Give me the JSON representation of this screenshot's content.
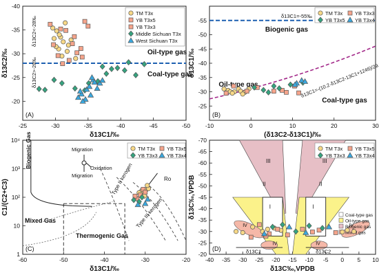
{
  "chart_data": [
    {
      "panel": "(A)",
      "type": "scatter",
      "xlabel": "δ13C1/‰",
      "ylabel": "δ13C2/‰",
      "xlim": [
        -25,
        -50
      ],
      "ylim": [
        -16,
        -40
      ],
      "xticks": [
        -25,
        -30,
        -35,
        -40,
        -45,
        -50
      ],
      "yticks": [
        -20,
        -25,
        -30,
        -35,
        -40
      ],
      "legend": [
        {
          "name": "TM T3x",
          "marker": "circle",
          "color": "#f6d784"
        },
        {
          "name": "YB T3x5",
          "marker": "square",
          "color": "#f2a08c"
        },
        {
          "name": "YB T3x3",
          "marker": "square",
          "color": "#f2a08c"
        },
        {
          "name": "Middle Sichuan T3x",
          "marker": "diamond",
          "color": "#2a9d7c"
        },
        {
          "name": "West Sichuan T3x",
          "marker": "triangle",
          "color": "#37a6dd"
        }
      ],
      "reference_line": {
        "y": -28,
        "label_upper": "Oil-type gas",
        "label_lower": "Coal-type gas",
        "side_upper": "δ13C2<-28‰",
        "side_lower": "δ13C2>-28‰"
      },
      "series": [
        {
          "name": "TM T3x",
          "points": [
            [
              -29.6,
              -35.4
            ],
            [
              -30.2,
              -34.8
            ],
            [
              -31.5,
              -36.5
            ],
            [
              -30.8,
              -33.5
            ],
            [
              -31.2,
              -32.5
            ],
            [
              -32.0,
              -31.8
            ],
            [
              -30.5,
              -31.0
            ],
            [
              -31.8,
              -30.5
            ],
            [
              -29.8,
              -33.2
            ],
            [
              -30.6,
              -34.0
            ],
            [
              -32.4,
              -32.9
            ],
            [
              -31.0,
              -29.5
            ],
            [
              -33.1,
              -29.0
            ],
            [
              -30.1,
              -31.5
            ]
          ]
        },
        {
          "name": "YB T3x",
          "points": [
            [
              -29.2,
              -36.2
            ],
            [
              -30.4,
              -29.6
            ],
            [
              -31.6,
              -34.9
            ],
            [
              -32.6,
              -32.1
            ],
            [
              -33.3,
              -30.2
            ],
            [
              -31.1,
              -27.9
            ],
            [
              -32.1,
              -28.6
            ],
            [
              -34.5,
              -36.8
            ],
            [
              -33.9,
              -31.1
            ],
            [
              -30.8,
              -35.2
            ],
            [
              -29.7,
              -31.9
            ],
            [
              -32.9,
              -33.6
            ],
            [
              -34.1,
              -29.3
            ],
            [
              -35.0,
              -35.8
            ]
          ]
        },
        {
          "name": "Middle Sichuan T3x",
          "points": [
            [
              -27.5,
              -22.6
            ],
            [
              -28.4,
              -22.4
            ],
            [
              -29.8,
              -24.5
            ],
            [
              -31.0,
              -23.8
            ],
            [
              -33.0,
              -22.7
            ],
            [
              -34.5,
              -22.3
            ],
            [
              -35.1,
              -23.8
            ],
            [
              -36.5,
              -24.2
            ],
            [
              -37.8,
              -25.8
            ],
            [
              -38.6,
              -26.8
            ],
            [
              -39.5,
              -27.0
            ],
            [
              -40.6,
              -26.5
            ],
            [
              -41.2,
              -28.2
            ],
            [
              -42.3,
              -25.5
            ],
            [
              -43.6,
              -27.8
            ],
            [
              -37.2,
              -27.3
            ]
          ]
        },
        {
          "name": "West Sichuan T3x",
          "points": [
            [
              -33.5,
              -20.8
            ],
            [
              -34.0,
              -21.5
            ],
            [
              -34.8,
              -22.5
            ],
            [
              -35.4,
              -21.3
            ],
            [
              -35.8,
              -24.5
            ],
            [
              -36.0,
              -24.0
            ],
            [
              -36.8,
              -23.8
            ],
            [
              -37.2,
              -24.4
            ],
            [
              -34.6,
              -20.4
            ],
            [
              -33.8,
              -22.1
            ],
            [
              -35.2,
              -23.1
            ],
            [
              -36.4,
              -22.7
            ],
            [
              -34.2,
              -20.0
            ],
            [
              -35.6,
              -25.0
            ]
          ]
        }
      ]
    },
    {
      "panel": "(B)",
      "type": "scatter",
      "xlabel": "(δ13C2-δ13C1)/‰",
      "ylabel": "δ13C1/‰",
      "xlim": [
        -10,
        30
      ],
      "ylim": [
        -20,
        -60
      ],
      "xticks": [
        -10,
        0,
        10,
        20,
        30
      ],
      "yticks": [
        -25,
        -30,
        -35,
        -40,
        -45,
        -50,
        -55
      ],
      "legend": [
        {
          "name": "TM T3x",
          "marker": "circle"
        },
        {
          "name": "YB T3x3",
          "marker": "square"
        },
        {
          "name": "YB T3x5",
          "marker": "diamond"
        },
        {
          "name": "YB T3x4",
          "marker": "triangle"
        }
      ],
      "reference_line": {
        "y": -55,
        "label": "δ13C1=-55‰"
      },
      "curve_label": "δ13C1=-(10.2·δ13C2-13C1+1246)/29.8",
      "region_labels": [
        "Biogenic gas",
        "Oil-type gas",
        "Coal-type gas"
      ],
      "series": [
        {
          "name": "TM T3x",
          "points": [
            [
              -6.5,
              -31.0
            ],
            [
              -5.5,
              -30.5
            ],
            [
              -4.0,
              -30.0
            ],
            [
              -3.0,
              -31.0
            ],
            [
              -2.5,
              -30.2
            ],
            [
              -1.5,
              -29.8
            ],
            [
              -0.5,
              -31.0
            ],
            [
              -5.0,
              -30.0
            ],
            [
              -4.5,
              -29.5
            ],
            [
              -2.0,
              -29.2
            ]
          ]
        },
        {
          "name": "YB T3x3",
          "points": [
            [
              -6.0,
              -29.5
            ],
            [
              -4.2,
              -32.0
            ],
            [
              -1.0,
              -30.2
            ],
            [
              1.5,
              -31.5
            ],
            [
              5.5,
              -30.2
            ],
            [
              8.5,
              -29.8
            ],
            [
              10.5,
              -32.0
            ],
            [
              11.5,
              -29.6
            ],
            [
              7.5,
              -30.5
            ]
          ]
        },
        {
          "name": "YB T3x5",
          "points": [
            [
              0.8,
              -31.5
            ],
            [
              3.0,
              -30.6
            ],
            [
              5.5,
              -32.0
            ],
            [
              9.5,
              -32.5
            ],
            [
              12.5,
              -33.2
            ],
            [
              6.8,
              -31.2
            ],
            [
              4.2,
              -29.8
            ]
          ]
        },
        {
          "name": "YB T3x4",
          "points": [
            [
              11.0,
              -33.0
            ],
            [
              12.2,
              -34.0
            ],
            [
              10.6,
              -32.5
            ],
            [
              13.0,
              -33.6
            ]
          ]
        }
      ]
    },
    {
      "panel": "(C)",
      "type": "scatter",
      "xlabel": "δ13C1/‰",
      "ylabel": "C1/(C2+C3)",
      "yscale": "log",
      "xlim": [
        -60,
        -20
      ],
      "ylim": [
        1,
        10000
      ],
      "xticks": [
        -60,
        -50,
        -40,
        -30,
        -20
      ],
      "yticks": [
        "1",
        "10",
        "10²",
        "10³",
        "10⁴"
      ],
      "legend": [
        {
          "name": "TM T3x",
          "marker": "circle"
        },
        {
          "name": "YB T3x5",
          "marker": "square"
        },
        {
          "name": "YB T3x3",
          "marker": "diamond"
        },
        {
          "name": "YB T3x4",
          "marker": "triangle"
        }
      ],
      "region_labels": [
        "Biogenic Gas",
        "Mixed Gas",
        "Thermogenic Gas",
        "Type II kerogen",
        "Type III kerogen",
        "Ro"
      ],
      "annotations": [
        "Migration",
        "Oxidation",
        "Migration"
      ],
      "series": [
        {
          "name": "TM T3x",
          "points": [
            [
              -30.5,
              130
            ],
            [
              -31.0,
              160
            ],
            [
              -29.8,
              180
            ],
            [
              -30.2,
              110
            ],
            [
              -29.2,
              200
            ],
            [
              -31.5,
              145
            ],
            [
              -29.5,
              260
            ]
          ]
        },
        {
          "name": "YB T3x5",
          "points": [
            [
              -32.0,
              90
            ],
            [
              -31.2,
              120
            ],
            [
              -30.5,
              190
            ],
            [
              -32.5,
              110
            ],
            [
              -30.0,
              150
            ]
          ]
        },
        {
          "name": "YB T3x3",
          "points": [
            [
              -31.5,
              70
            ],
            [
              -30.8,
              100
            ],
            [
              -32.8,
              80
            ]
          ]
        },
        {
          "name": "YB T3x4",
          "points": [
            [
              -30.0,
              60
            ],
            [
              -31.8,
              55
            ],
            [
              -29.4,
              85
            ]
          ]
        }
      ]
    },
    {
      "panel": "(D)",
      "type": "scatter",
      "xlabel": "δ13C‰,VPDB",
      "ylabel": "δ13C‰,VPDB",
      "xlim": [
        -40,
        10
      ],
      "ylim": [
        -20,
        -70
      ],
      "xticks": [
        -40,
        -35,
        -30,
        -25,
        -20,
        -15,
        -10,
        -5,
        0,
        5,
        10
      ],
      "yticks": [
        -20,
        -25,
        -30,
        -35,
        -40,
        -45,
        -50,
        -55,
        -60,
        -65,
        -70
      ],
      "axis_arrows": [
        "δ13C1",
        "δ13C2"
      ],
      "legend": [
        {
          "name": "TM T3x",
          "marker": "circle"
        },
        {
          "name": "YB T3x5",
          "marker": "square"
        },
        {
          "name": "YB T3x3",
          "marker": "diamond"
        },
        {
          "name": "YB T3x4",
          "marker": "triangle"
        }
      ],
      "region_legend": [
        {
          "roman": "I",
          "name": "Coal-type gas",
          "color": "#ffffff"
        },
        {
          "roman": "II",
          "name": "Oil-type gas",
          "color": "#fbf28a"
        },
        {
          "roman": "III",
          "name": "Biogenic gas",
          "color": "#e7bfc6"
        },
        {
          "roman": "IV",
          "name": "Mixed gas",
          "color": "#f5b8a8"
        }
      ],
      "series": [
        {
          "name": "TM T3x",
          "points": [
            [
              -24,
              -30
            ],
            [
              -22.5,
              -31
            ],
            [
              -20.5,
              -31.5
            ],
            [
              -18.5,
              -30.5
            ],
            [
              -27,
              -32
            ],
            [
              -30,
              -29.5
            ],
            [
              -32,
              -30
            ],
            [
              3.5,
              -30
            ],
            [
              1.5,
              -30.6
            ],
            [
              0,
              -29.8
            ]
          ]
        },
        {
          "name": "YB T3x",
          "points": [
            [
              -25,
              -33
            ],
            [
              -22,
              -29
            ],
            [
              -19.5,
              -31
            ],
            [
              -16.5,
              -28.5
            ],
            [
              -12,
              -31
            ],
            [
              -9,
              -29.8
            ],
            [
              -7,
              -30.6
            ],
            [
              -2,
              -29.5
            ],
            [
              -27.5,
              -27.5
            ],
            [
              -23,
              -28
            ]
          ]
        },
        {
          "name": "YB T3x3",
          "points": [
            [
              -21,
              -32
            ],
            [
              -18,
              -33
            ],
            [
              -14,
              -30
            ],
            [
              -10,
              -32.5
            ],
            [
              -6,
              -31.5
            ]
          ]
        },
        {
          "name": "YB T3x4",
          "points": [
            [
              -23.5,
              -29
            ],
            [
              -16,
              -32
            ],
            [
              -11,
              -29.5
            ],
            [
              -4,
              -32
            ]
          ]
        }
      ]
    }
  ]
}
